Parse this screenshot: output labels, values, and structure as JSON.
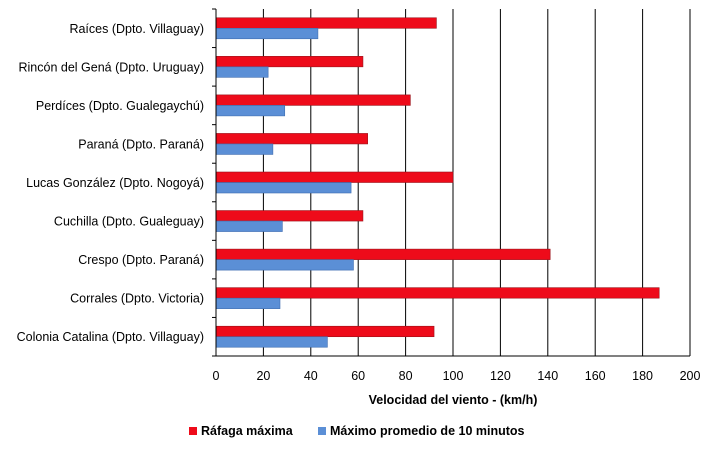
{
  "chart_data": {
    "type": "bar",
    "orientation": "horizontal",
    "categories": [
      "Raíces (Dpto. Villaguay)",
      "Rincón del Gená (Dpto. Uruguay)",
      "Perdíces (Dpto. Gualegaychú)",
      "Paraná (Dpto. Paraná)",
      "Lucas González (Dpto. Nogoyá)",
      "Cuchilla (Dpto. Gualeguay)",
      "Crespo (Dpto. Paraná)",
      "Corrales (Dpto. Victoria)",
      "Colonia Catalina (Dpto. Villaguay)"
    ],
    "series": [
      {
        "name": "Ráfaga máxima",
        "color": "#ee0b1a",
        "values": [
          93,
          62,
          82,
          64,
          100,
          62,
          141,
          187,
          92
        ]
      },
      {
        "name": "Máximo promedio de 10 minutos",
        "color": "#5b8fd6",
        "values": [
          43,
          22,
          29,
          24,
          57,
          28,
          58,
          27,
          47
        ]
      }
    ],
    "xlabel": "Velocidad del viento - (km/h)",
    "ylabel": "",
    "title": "",
    "xlim": [
      0,
      200
    ],
    "xticks": [
      "0",
      "20",
      "40",
      "60",
      "80",
      "100",
      "120",
      "140",
      "160",
      "180",
      "200"
    ],
    "grid": "vertical",
    "legend_position": "bottom"
  }
}
